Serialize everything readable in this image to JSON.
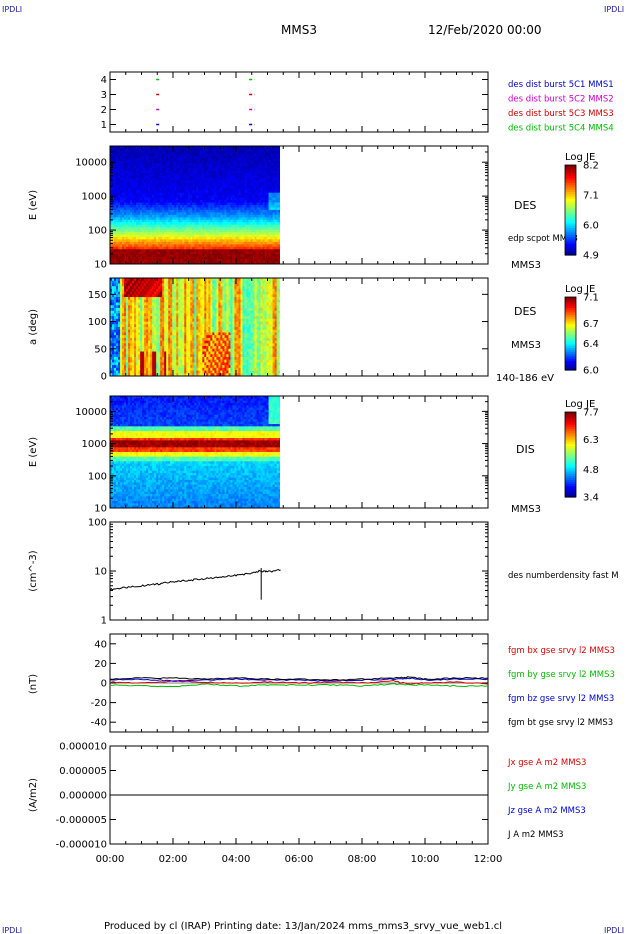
{
  "header": {
    "corner_left_top": "IPDLI",
    "corner_right_top": "IPDLI",
    "corner_left_bottom": "IPDLI",
    "corner_right_bottom": "IPDLI",
    "spacecraft": "MMS3",
    "date": "12/Feb/2020 00:00"
  },
  "footer": {
    "text": "Produced by cl (IRAP)   Printing date: 13/Jan/2024   mms_mms3_srvy_vue_web1.cl"
  },
  "colors": {
    "mms1": "#0000cc",
    "mms2": "#cc00cc",
    "mms3": "#cc0000",
    "mms4": "#00bb00",
    "bx": "#dd0000",
    "by": "#00bb00",
    "bz": "#0000dd",
    "bt": "#000000"
  },
  "chart_data": [
    {
      "type": "scatter",
      "name": "burst-availability",
      "x_range": [
        "00:00",
        "12:00"
      ],
      "yticks": [
        "1",
        "2",
        "3",
        "4"
      ],
      "segments": [
        {
          "sc": 4,
          "x": [
            "01:28",
            "01:35"
          ]
        },
        {
          "sc": 4,
          "x": [
            "04:25",
            "04:35"
          ]
        },
        {
          "sc": 3,
          "x": [
            "01:28",
            "01:35"
          ]
        },
        {
          "sc": 3,
          "x": [
            "04:25",
            "04:35"
          ]
        },
        {
          "sc": 2,
          "x": [
            "01:28",
            "01:35"
          ]
        },
        {
          "sc": 2,
          "x": [
            "04:25",
            "04:35"
          ]
        },
        {
          "sc": 1,
          "x": [
            "01:28",
            "01:35"
          ]
        },
        {
          "sc": 1,
          "x": [
            "04:25",
            "04:35"
          ]
        }
      ],
      "legend": [
        {
          "label": "des dist burst 5C1 MMS1",
          "color_key": "mms1"
        },
        {
          "label": "des dist burst 5C2 MMS2",
          "color_key": "mms2"
        },
        {
          "label": "des dist burst 5C3 MMS3",
          "color_key": "mms3"
        },
        {
          "label": "des dist burst 5C4 MMS4",
          "color_key": "mms4"
        }
      ]
    },
    {
      "type": "heatmap",
      "name": "des-energy",
      "ylabel": "E (eV)",
      "yscale": "log",
      "ylim": [
        10,
        30000
      ],
      "yticks": [
        "10",
        "100",
        "1000",
        "10000"
      ],
      "data_x_range": [
        "00:00",
        "05:25"
      ],
      "label": "DES",
      "sub_labels": [
        "edp scpot MMS3",
        "MMS3"
      ],
      "colorbar": {
        "title": "Log JE",
        "ticks": [
          "8.2",
          "7.1",
          "6.0",
          "4.9"
        ],
        "range": [
          4.9,
          8.2
        ]
      }
    },
    {
      "type": "heatmap",
      "name": "des-pitch",
      "ylabel": "a (deg)",
      "ylim": [
        0,
        180
      ],
      "yticks": [
        "0",
        "50",
        "100",
        "150"
      ],
      "data_x_range": [
        "00:00",
        "05:25"
      ],
      "label": "DES",
      "sub_labels": [
        "MMS3",
        "140-186 eV"
      ],
      "colorbar": {
        "title": "Log JE",
        "ticks": [
          "7.1",
          "6.7",
          "6.4",
          "6.0"
        ],
        "range": [
          6.0,
          7.1
        ]
      }
    },
    {
      "type": "heatmap",
      "name": "dis-energy",
      "ylabel": "E (eV)",
      "yscale": "log",
      "ylim": [
        10,
        30000
      ],
      "yticks": [
        "10",
        "100",
        "1000",
        "10000"
      ],
      "data_x_range": [
        "00:00",
        "05:25"
      ],
      "label": "DIS",
      "sub_labels": [
        "MMS3"
      ],
      "colorbar": {
        "title": "Log JE",
        "ticks": [
          "7.7",
          "6.3",
          "4.8",
          "3.4"
        ],
        "range": [
          3.4,
          7.7
        ]
      }
    },
    {
      "type": "line",
      "name": "density",
      "ylabel": "(cm^-3)",
      "yscale": "log",
      "ylim": [
        1,
        100
      ],
      "yticks": [
        "1",
        "10",
        "100"
      ],
      "series": [
        {
          "name": "des numberdensity fast M",
          "x": [
            "00:00",
            "00:30",
            "01:00",
            "01:30",
            "02:00",
            "02:30",
            "03:00",
            "03:30",
            "04:00",
            "04:30",
            "04:45",
            "05:00",
            "05:25"
          ],
          "values": [
            4.2,
            4.6,
            5.0,
            5.4,
            6.0,
            6.4,
            7.0,
            7.4,
            8.2,
            9.0,
            10.0,
            9.6,
            10.5
          ]
        }
      ],
      "spike": {
        "x": "04:48",
        "min": 2.6,
        "max": 11.5
      }
    },
    {
      "type": "line",
      "name": "magnetic-field",
      "ylabel": "(nT)",
      "ylim": [
        -50,
        50
      ],
      "yticks": [
        "-40",
        "-20",
        "0",
        "20",
        "40"
      ],
      "x": [
        "00:00",
        "01:00",
        "02:00",
        "03:00",
        "04:00",
        "05:00",
        "06:00",
        "07:00",
        "08:00",
        "09:00",
        "09:30",
        "10:00",
        "11:00",
        "12:00"
      ],
      "series": [
        {
          "name": "fgm bx gse srvy l2 MMS3",
          "color_key": "bx",
          "values": [
            1,
            0,
            2,
            1,
            0,
            1,
            0,
            1,
            0,
            2,
            -1,
            0,
            1,
            -1
          ]
        },
        {
          "name": "fgm by gse srvy l2 MMS3",
          "color_key": "by",
          "values": [
            -2,
            -3,
            -4,
            -1,
            -3,
            -2,
            -2,
            -2,
            -3,
            -1,
            -2,
            -2,
            -3,
            -3
          ]
        },
        {
          "name": "fgm bz gse srvy l2 MMS3",
          "color_key": "bz",
          "values": [
            3,
            4,
            2,
            3,
            4,
            3,
            3,
            2,
            3,
            4,
            5,
            3,
            4,
            4
          ]
        },
        {
          "name": "fgm bt gse srvy l2 MMS3",
          "color_key": "bt",
          "values": [
            4,
            5,
            5,
            4,
            5,
            4,
            4,
            3,
            4,
            5,
            6,
            4,
            5,
            5
          ]
        }
      ]
    },
    {
      "type": "line",
      "name": "current-density",
      "ylabel": "(A/m2)",
      "ylim": [
        -1e-05,
        1e-05
      ],
      "yticks": [
        "0.000010",
        "0.000005",
        "0.000000",
        "-0.000005",
        "-0.000010"
      ],
      "xticks": [
        "00:00",
        "02:00",
        "04:00",
        "06:00",
        "08:00",
        "10:00",
        "12:00"
      ],
      "x": [
        "00:00",
        "12:00"
      ],
      "series": [
        {
          "name": "Jx gse A m2 MMS3",
          "color_key": "bx",
          "values": [
            0,
            0
          ]
        },
        {
          "name": "Jy gse A m2 MMS3",
          "color_key": "by",
          "values": [
            0,
            0
          ]
        },
        {
          "name": "Jz gse A m2 MMS3",
          "color_key": "bz",
          "values": [
            0,
            0
          ]
        },
        {
          "name": "J A m2 MMS3",
          "color_key": "bt",
          "values": [
            0,
            0
          ]
        }
      ]
    }
  ]
}
